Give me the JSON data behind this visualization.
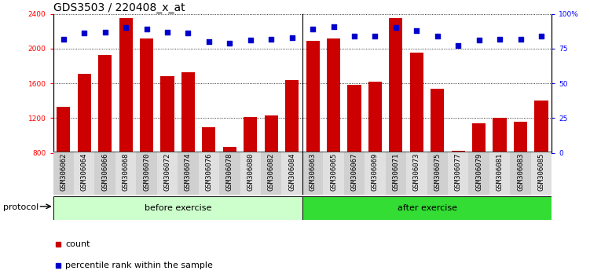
{
  "title": "GDS3503 / 220408_x_at",
  "categories": [
    "GSM306062",
    "GSM306064",
    "GSM306066",
    "GSM306068",
    "GSM306070",
    "GSM306072",
    "GSM306074",
    "GSM306076",
    "GSM306078",
    "GSM306080",
    "GSM306082",
    "GSM306084",
    "GSM306063",
    "GSM306065",
    "GSM306067",
    "GSM306069",
    "GSM306071",
    "GSM306073",
    "GSM306075",
    "GSM306077",
    "GSM306079",
    "GSM306081",
    "GSM306083",
    "GSM306085"
  ],
  "bar_values": [
    1330,
    1710,
    1930,
    2350,
    2120,
    1680,
    1730,
    1100,
    870,
    1210,
    1230,
    1640,
    2090,
    2120,
    1580,
    1620,
    2350,
    1950,
    1540,
    820,
    1140,
    1200,
    1160,
    1400
  ],
  "percentile_values": [
    82,
    86,
    87,
    90,
    89,
    87,
    86,
    80,
    79,
    81,
    82,
    83,
    89,
    91,
    84,
    84,
    90,
    88,
    84,
    77,
    81,
    82,
    82,
    84
  ],
  "before_count": 12,
  "after_count": 12,
  "ylim_left": [
    800,
    2400
  ],
  "ylim_right": [
    0,
    100
  ],
  "yticks_left": [
    800,
    1200,
    1600,
    2000,
    2400
  ],
  "yticks_right": [
    0,
    25,
    50,
    75,
    100
  ],
  "bar_color": "#cc0000",
  "dot_color": "#0000cc",
  "before_color": "#ccffcc",
  "after_color": "#33dd33",
  "before_label": "before exercise",
  "after_label": "after exercise",
  "protocol_label": "protocol",
  "legend_count": "count",
  "legend_percentile": "percentile rank within the sample",
  "title_fontsize": 10,
  "tick_fontsize": 6.5,
  "label_fontsize": 8
}
